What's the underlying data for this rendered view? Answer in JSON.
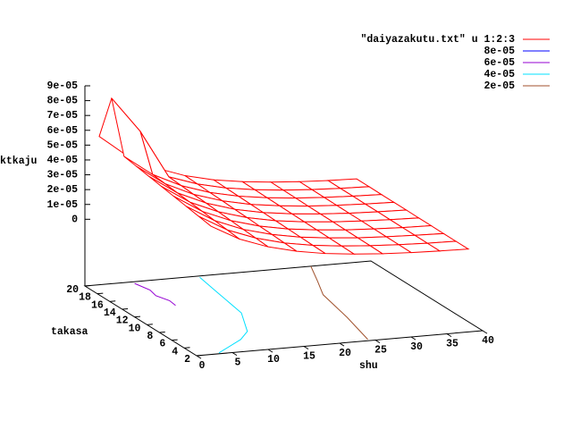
{
  "chart_data": {
    "type": "surface",
    "name": "\"daiyazakutu.txt\" u 1:2:3",
    "color": "#ff0000",
    "xlabel": "shu",
    "ylabel": "takasa",
    "zlabel": "ktkaju",
    "xlim": [
      0,
      40
    ],
    "ylim": [
      2,
      20
    ],
    "zlim": [
      -4.5e-05,
      9e-05
    ],
    "xticks": [
      0,
      5,
      10,
      15,
      20,
      25,
      30,
      35,
      40
    ],
    "yticks": [
      2,
      4,
      6,
      8,
      10,
      12,
      14,
      16,
      18,
      20
    ],
    "zticks": [
      0,
      {
        "value": 1e-05,
        "label": "1e-05"
      },
      {
        "value": 2e-05,
        "label": "2e-05"
      },
      {
        "value": 3e-05,
        "label": "3e-05"
      },
      {
        "value": 4e-05,
        "label": "4e-05"
      },
      {
        "value": 5e-05,
        "label": "5e-05"
      },
      {
        "value": 6e-05,
        "label": "6e-05"
      },
      {
        "value": 7e-05,
        "label": "7e-05"
      },
      {
        "value": 8e-05,
        "label": "8e-05"
      },
      {
        "value": 9e-05,
        "label": "9e-05"
      }
    ],
    "x": [
      2,
      6,
      10,
      14,
      18,
      22,
      26,
      30,
      34,
      38
    ],
    "y": [
      2,
      4,
      6,
      8,
      10,
      12,
      14,
      16,
      18,
      20
    ],
    "z": [
      [
        4.15e-05,
        3.11e-05,
        2.42e-05,
        1.95e-05,
        1.63e-05,
        1.43e-05,
        1.28e-05,
        1.19e-05,
        1.13e-05,
        1.09e-05
      ],
      [
        4.3e-05,
        3.21e-05,
        2.49e-05,
        1.99e-05,
        1.66e-05,
        1.45e-05,
        1.3e-05,
        1.2e-05,
        1.13e-05,
        1.09e-05
      ],
      [
        4.45e-05,
        3.31e-05,
        2.55e-05,
        2.04e-05,
        1.69e-05,
        1.47e-05,
        1.31e-05,
        1.21e-05,
        1.14e-05,
        1.09e-05
      ],
      [
        4.6e-05,
        3.41e-05,
        2.62e-05,
        2.08e-05,
        1.72e-05,
        1.49e-05,
        1.32e-05,
        1.22e-05,
        1.14e-05,
        1.1e-05
      ],
      [
        4.75e-05,
        3.51e-05,
        2.69e-05,
        2.13e-05,
        1.75e-05,
        1.51e-05,
        1.34e-05,
        1.23e-05,
        1.15e-05,
        1.1e-05
      ],
      [
        4.9e-05,
        3.61e-05,
        2.76e-05,
        2.17e-05,
        1.78e-05,
        1.53e-05,
        1.35e-05,
        1.23e-05,
        1.16e-05,
        1.11e-05
      ],
      [
        5.05e-05,
        3.71e-05,
        2.82e-05,
        2.22e-05,
        1.81e-05,
        1.55e-05,
        1.36e-05,
        1.24e-05,
        1.16e-05,
        1.11e-05
      ],
      [
        5.2e-05,
        3.81e-05,
        2.89e-05,
        2.26e-05,
        1.84e-05,
        1.57e-05,
        1.38e-05,
        1.25e-05,
        1.17e-05,
        1.11e-05
      ],
      [
        8.6e-05,
        6.2e-05,
        2.96e-05,
        2.31e-05,
        1.87e-05,
        1.59e-05,
        1.39e-05,
        1.26e-05,
        1.17e-05,
        1.12e-05
      ],
      [
        5.5e-05,
        4e-05,
        3.03e-05,
        2.35e-05,
        1.9e-05,
        1.61e-05,
        1.41e-05,
        1.27e-05,
        1.18e-05,
        1.12e-05
      ]
    ],
    "contours": [
      {
        "level": {
          "value": 8e-05,
          "label": "8e-05"
        },
        "color": "#0000ff"
      },
      {
        "level": {
          "value": 6e-05,
          "label": "6e-05"
        },
        "color": "#9400d3",
        "x": [
          6.6,
          7.2,
          6.8,
          7.5,
          7.3
        ],
        "y": [
          19.6,
          17.8,
          16.4,
          15,
          13.8
        ]
      },
      {
        "level": {
          "value": 4e-05,
          "label": "4e-05"
        },
        "color": "#00e0ff",
        "x": [
          15.8,
          15,
          13.9,
          11,
          8.6,
          3.3
        ],
        "y": [
          19.7,
          16,
          10.8,
          6.5,
          4.8,
          2.2
        ]
      },
      {
        "level": {
          "value": 2e-05,
          "label": "2e-05"
        },
        "color": "#a0522d",
        "x": [
          31.6,
          29.5,
          27.5,
          26,
          24.2
        ],
        "y": [
          20,
          16.5,
          13.3,
          7.7,
          2.3
        ]
      }
    ]
  }
}
